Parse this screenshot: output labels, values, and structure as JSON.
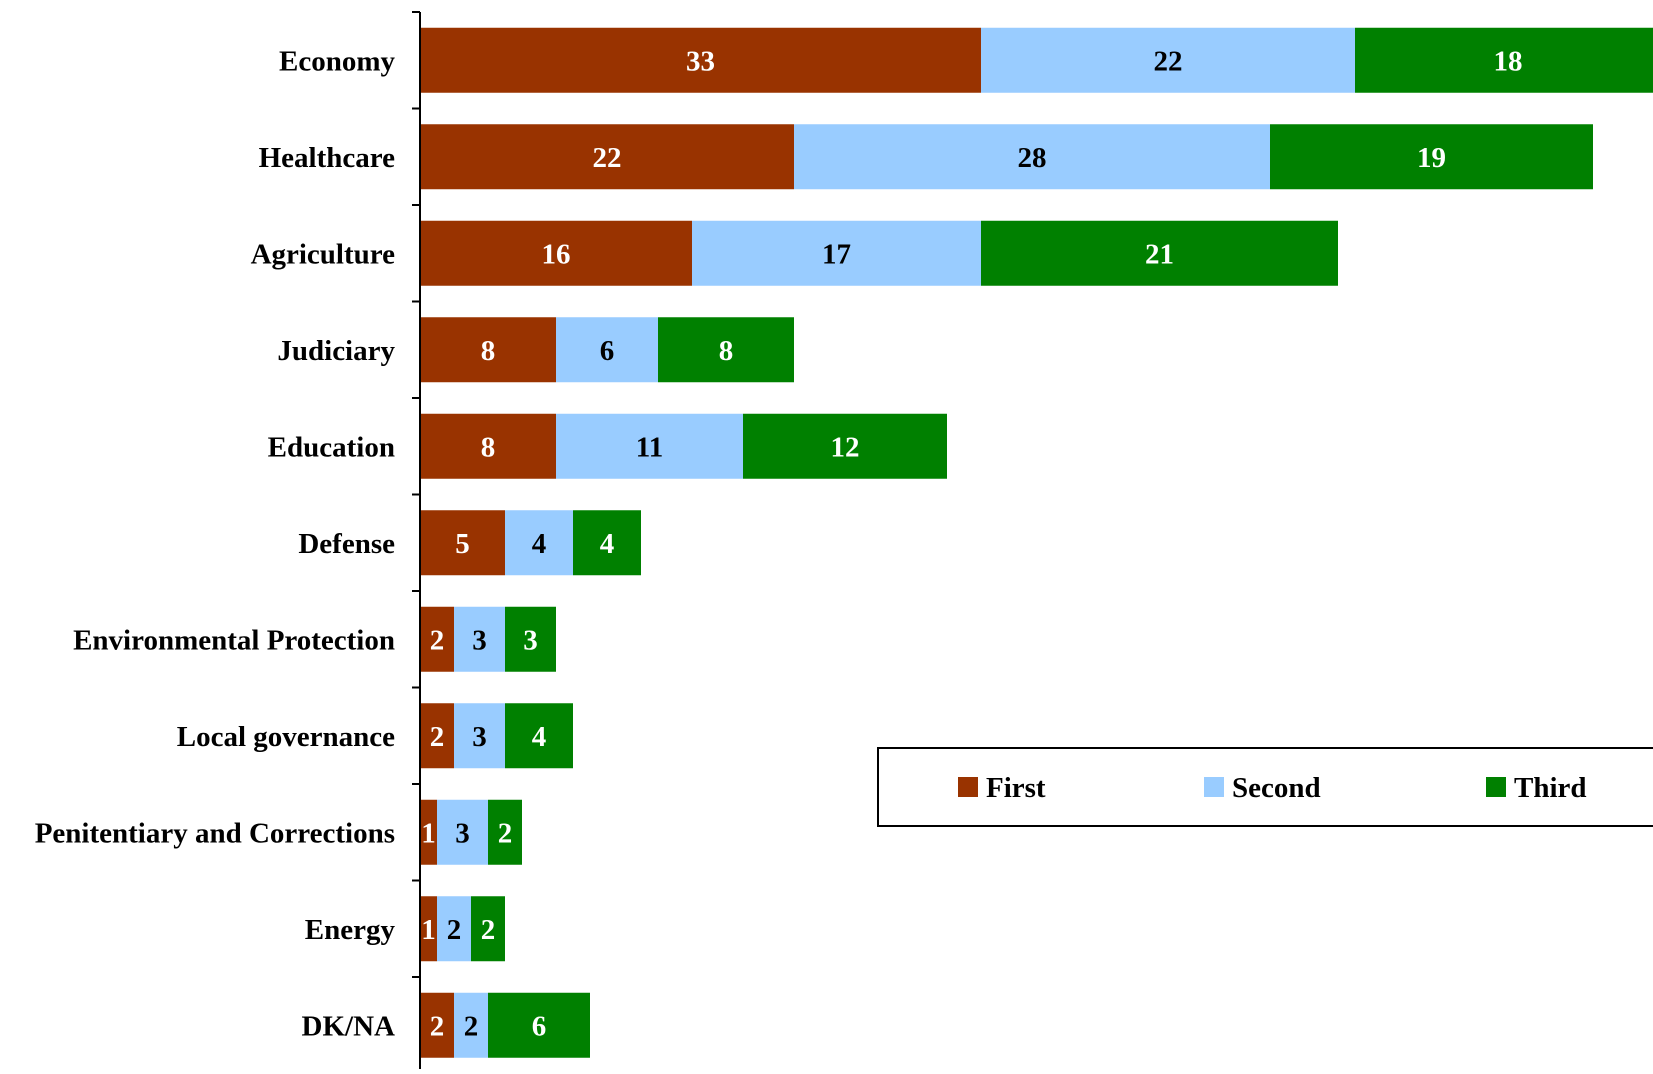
{
  "chart_data": {
    "type": "bar",
    "orientation": "horizontal",
    "stacked": true,
    "title": "",
    "xlabel": "",
    "ylabel": "",
    "categories": [
      "Economy",
      "Healthcare",
      "Agriculture",
      "Judiciary",
      "Education",
      "Defense",
      "Environmental Protection",
      "Local governance",
      "Penitentiary and Corrections",
      "Energy",
      "DK/NA"
    ],
    "series": [
      {
        "name": "First",
        "color": "#993300",
        "label_color": "#ffffff",
        "values": [
          33,
          22,
          16,
          8,
          8,
          5,
          2,
          2,
          1,
          1,
          2
        ]
      },
      {
        "name": "Second",
        "color": "#99ccff",
        "label_color": "#000000",
        "values": [
          22,
          28,
          17,
          6,
          11,
          4,
          3,
          3,
          3,
          2,
          2
        ]
      },
      {
        "name": "Third",
        "color": "#008000",
        "label_color": "#ffffff",
        "values": [
          18,
          19,
          21,
          8,
          12,
          4,
          3,
          4,
          2,
          2,
          6
        ]
      }
    ],
    "xlim": [
      0,
      73
    ],
    "grid": false,
    "legend": {
      "placement": "bottom-right",
      "entries": [
        "First",
        "Second",
        "Third"
      ]
    }
  }
}
